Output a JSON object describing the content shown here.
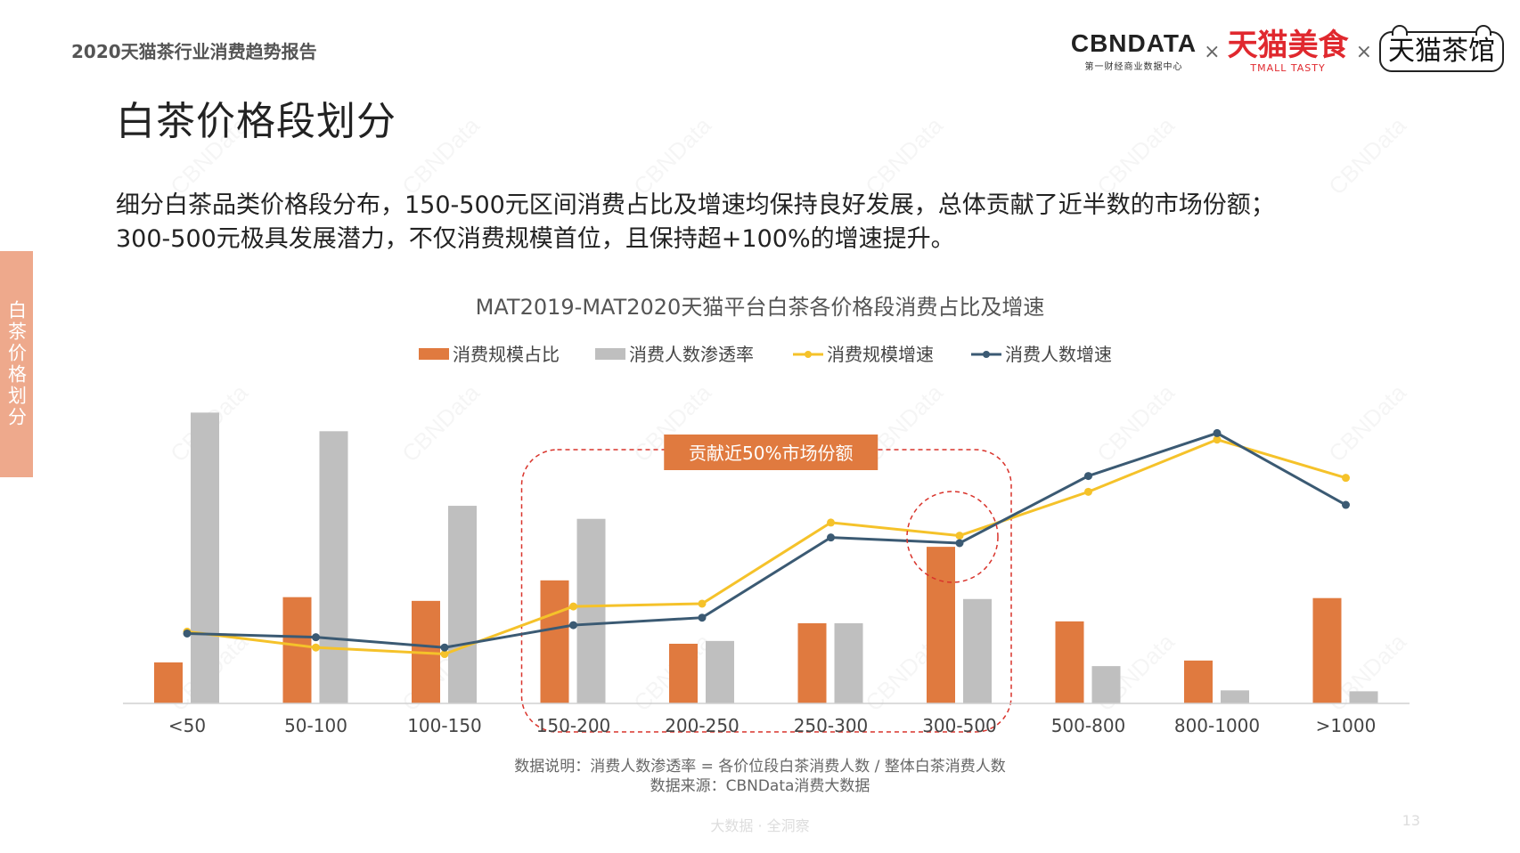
{
  "header": {
    "report_title": "2020天猫茶行业消费趋势报告",
    "logos": {
      "cbn_main": "CBNDATA",
      "cbn_sub": "第一财经商业数据中心",
      "separator": "×",
      "tmall_food_main": "天猫美食",
      "tmall_food_sub": "TMALL TASTY",
      "teahouse": "天猫茶馆"
    }
  },
  "side_tab": "白茶价格划分",
  "page_heading": "白茶价格段划分",
  "description": {
    "line1": "细分白茶品类价格段分布，150-500元区间消费占比及增速均保持良好发展，总体贡献了近半数的市场份额；",
    "line2": "300-500元极具发展潜力，不仅消费规模首位，且保持超+100%的增速提升。"
  },
  "watermark_text": "CBNData",
  "chart_data": {
    "type": "bar",
    "title": "MAT2019-MAT2020天猫平台白茶各价格段消费占比及增速",
    "legend_position": "top-center",
    "categories": [
      "<50",
      "50-100",
      "100-150",
      "150-200",
      "200-250",
      "250-300",
      "300-500",
      "500-800",
      "800-1000",
      ">1000"
    ],
    "series": [
      {
        "name": "消费规模占比",
        "kind": "bar",
        "color": "#e07a3f",
        "values": [
          4.4,
          11.4,
          11.0,
          13.2,
          6.4,
          8.6,
          16.8,
          8.8,
          4.6,
          11.3
        ]
      },
      {
        "name": "消费人数渗透率",
        "kind": "bar",
        "color": "#bfbfbf",
        "values": [
          31.2,
          29.2,
          21.2,
          19.8,
          6.7,
          8.6,
          11.2,
          4.0,
          1.4,
          1.3
        ]
      },
      {
        "name": "消费规模增速",
        "kind": "line",
        "color": "#f5c22a",
        "values": [
          7.7,
          6.0,
          5.3,
          10.4,
          10.7,
          19.4,
          18.0,
          22.7,
          28.3,
          24.2
        ]
      },
      {
        "name": "消费人数增速",
        "kind": "line",
        "color": "#3b5a73",
        "values": [
          7.5,
          7.1,
          6.0,
          8.4,
          9.2,
          17.8,
          17.2,
          24.4,
          29.0,
          21.3
        ]
      }
    ],
    "ylim": [
      0,
      32
    ],
    "grid": false,
    "annotation": {
      "label": "贡献近50%市场份额",
      "range_categories": [
        "150-200",
        "300-500"
      ],
      "circle_category": "300-500"
    }
  },
  "notes": {
    "definition": "数据说明：消费人数渗透率 = 各价位段白茶消费人数 / 整体白茶消费人数",
    "source": "数据来源：CBNData消费大数据"
  },
  "footer": {
    "tagline": "大数据 · 全洞察",
    "page_number": "13"
  }
}
